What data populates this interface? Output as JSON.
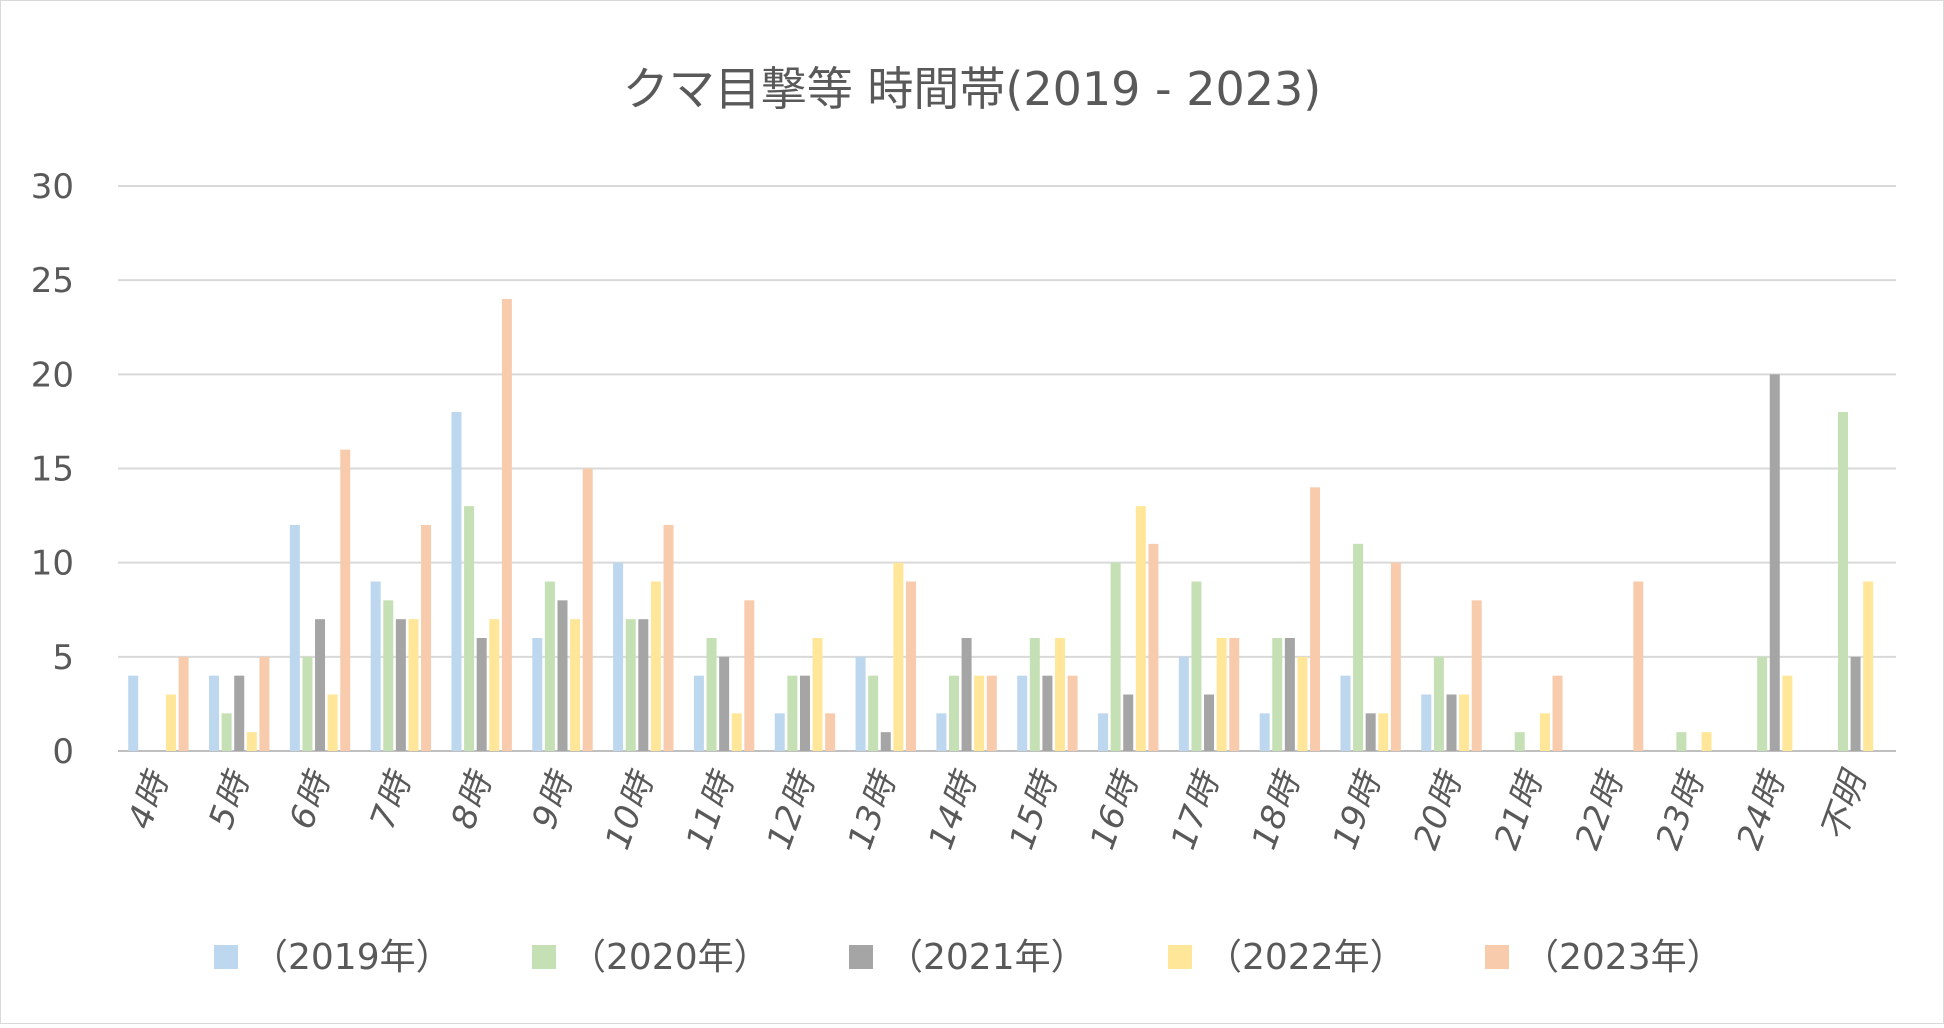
{
  "chart_data": {
    "type": "bar",
    "title": "クマ目撃等 時間帯(2019 - 2023)",
    "xlabel": "",
    "ylabel": "",
    "ylim": [
      0,
      30
    ],
    "yticks": [
      0,
      5,
      10,
      15,
      20,
      25,
      30
    ],
    "grid": true,
    "legend_position": "bottom",
    "categories": [
      "4時",
      "5時",
      "6時",
      "7時",
      "8時",
      "9時",
      "10時",
      "11時",
      "12時",
      "13時",
      "14時",
      "15時",
      "16時",
      "17時",
      "18時",
      "19時",
      "20時",
      "21時",
      "22時",
      "23時",
      "24時",
      "不明"
    ],
    "series": [
      {
        "name": "（2019年）",
        "color": "#bdd7ee",
        "values": [
          4,
          4,
          12,
          9,
          18,
          6,
          10,
          4,
          2,
          5,
          2,
          4,
          2,
          5,
          2,
          4,
          3,
          0,
          0,
          0,
          0,
          0
        ]
      },
      {
        "name": "（2020年）",
        "color": "#c5e0b4",
        "values": [
          0,
          2,
          5,
          8,
          13,
          9,
          7,
          6,
          4,
          4,
          4,
          6,
          10,
          9,
          6,
          11,
          5,
          1,
          0,
          1,
          5,
          18
        ]
      },
      {
        "name": "（2021年）",
        "color": "#a5a5a5",
        "values": [
          0,
          4,
          7,
          7,
          6,
          8,
          7,
          5,
          4,
          1,
          6,
          4,
          3,
          3,
          6,
          2,
          3,
          0,
          0,
          0,
          20,
          5
        ]
      },
      {
        "name": "（2022年）",
        "color": "#ffe699",
        "values": [
          3,
          1,
          3,
          7,
          7,
          7,
          9,
          2,
          6,
          10,
          4,
          6,
          13,
          6,
          5,
          2,
          3,
          2,
          0,
          1,
          4,
          9
        ]
      },
      {
        "name": "（2023年）",
        "color": "#f8cbad",
        "values": [
          5,
          5,
          16,
          12,
          24,
          15,
          12,
          8,
          2,
          9,
          4,
          4,
          11,
          6,
          14,
          10,
          8,
          4,
          9,
          0,
          0,
          0
        ]
      }
    ]
  }
}
